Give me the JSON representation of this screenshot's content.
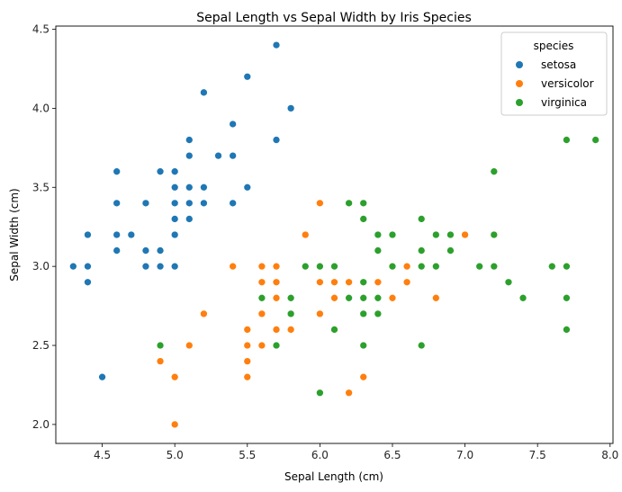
{
  "chart_data": {
    "type": "scatter",
    "title": "Sepal Length vs Sepal Width by Iris Species",
    "xlabel": "Sepal Length (cm)",
    "ylabel": "Sepal Width (cm)",
    "xlim": [
      4.18,
      8.02
    ],
    "ylim": [
      1.88,
      4.52
    ],
    "x_ticks": [
      "4.5",
      "5.0",
      "5.5",
      "6.0",
      "6.5",
      "7.0",
      "7.5",
      "8.0"
    ],
    "y_ticks": [
      "2.0",
      "2.5",
      "3.0",
      "3.5",
      "4.0",
      "4.5"
    ],
    "grid": false,
    "legend": {
      "title": "species",
      "placement": "top-right"
    },
    "series": [
      {
        "name": "setosa",
        "color": "#1f77b4",
        "points": [
          [
            5.1,
            3.5
          ],
          [
            4.9,
            3.0
          ],
          [
            4.7,
            3.2
          ],
          [
            4.6,
            3.1
          ],
          [
            5.0,
            3.6
          ],
          [
            5.4,
            3.9
          ],
          [
            4.6,
            3.4
          ],
          [
            5.0,
            3.4
          ],
          [
            4.4,
            2.9
          ],
          [
            4.9,
            3.1
          ],
          [
            5.4,
            3.7
          ],
          [
            4.8,
            3.4
          ],
          [
            4.8,
            3.0
          ],
          [
            4.3,
            3.0
          ],
          [
            5.8,
            4.0
          ],
          [
            5.7,
            4.4
          ],
          [
            5.4,
            3.9
          ],
          [
            5.1,
            3.5
          ],
          [
            5.7,
            3.8
          ],
          [
            5.1,
            3.8
          ],
          [
            5.4,
            3.4
          ],
          [
            5.1,
            3.7
          ],
          [
            4.6,
            3.6
          ],
          [
            5.1,
            3.3
          ],
          [
            4.8,
            3.4
          ],
          [
            5.0,
            3.0
          ],
          [
            5.0,
            3.4
          ],
          [
            5.2,
            3.5
          ],
          [
            5.2,
            3.4
          ],
          [
            4.7,
            3.2
          ],
          [
            4.8,
            3.1
          ],
          [
            5.4,
            3.4
          ],
          [
            5.2,
            4.1
          ],
          [
            5.5,
            4.2
          ],
          [
            4.9,
            3.1
          ],
          [
            5.0,
            3.2
          ],
          [
            5.5,
            3.5
          ],
          [
            4.9,
            3.6
          ],
          [
            4.4,
            3.0
          ],
          [
            5.1,
            3.4
          ],
          [
            5.0,
            3.5
          ],
          [
            4.5,
            2.3
          ],
          [
            4.4,
            3.2
          ],
          [
            5.0,
            3.5
          ],
          [
            5.1,
            3.8
          ],
          [
            4.8,
            3.0
          ],
          [
            5.1,
            3.8
          ],
          [
            4.6,
            3.2
          ],
          [
            5.3,
            3.7
          ],
          [
            5.0,
            3.3
          ]
        ]
      },
      {
        "name": "versicolor",
        "color": "#ff7f0e",
        "points": [
          [
            7.0,
            3.2
          ],
          [
            6.4,
            3.2
          ],
          [
            6.9,
            3.1
          ],
          [
            5.5,
            2.3
          ],
          [
            6.5,
            2.8
          ],
          [
            5.7,
            2.8
          ],
          [
            6.3,
            3.3
          ],
          [
            4.9,
            2.4
          ],
          [
            6.6,
            2.9
          ],
          [
            5.2,
            2.7
          ],
          [
            5.0,
            2.0
          ],
          [
            5.9,
            3.0
          ],
          [
            6.0,
            2.2
          ],
          [
            6.1,
            2.9
          ],
          [
            5.6,
            2.9
          ],
          [
            6.7,
            3.1
          ],
          [
            5.6,
            3.0
          ],
          [
            5.8,
            2.7
          ],
          [
            6.2,
            2.2
          ],
          [
            5.6,
            2.5
          ],
          [
            5.9,
            3.2
          ],
          [
            6.1,
            2.8
          ],
          [
            6.3,
            2.5
          ],
          [
            6.1,
            2.8
          ],
          [
            6.4,
            2.9
          ],
          [
            6.6,
            3.0
          ],
          [
            6.8,
            2.8
          ],
          [
            6.7,
            3.0
          ],
          [
            6.0,
            2.9
          ],
          [
            5.7,
            2.6
          ],
          [
            5.5,
            2.4
          ],
          [
            5.5,
            2.4
          ],
          [
            5.8,
            2.7
          ],
          [
            6.0,
            2.7
          ],
          [
            5.4,
            3.0
          ],
          [
            6.0,
            3.4
          ],
          [
            6.7,
            3.1
          ],
          [
            6.3,
            2.3
          ],
          [
            5.6,
            3.0
          ],
          [
            5.5,
            2.5
          ],
          [
            5.5,
            2.6
          ],
          [
            6.1,
            3.0
          ],
          [
            5.8,
            2.6
          ],
          [
            5.0,
            2.3
          ],
          [
            5.6,
            2.7
          ],
          [
            5.7,
            3.0
          ],
          [
            5.7,
            2.9
          ],
          [
            6.2,
            2.9
          ],
          [
            5.1,
            2.5
          ],
          [
            5.7,
            2.8
          ]
        ]
      },
      {
        "name": "virginica",
        "color": "#2ca02c",
        "points": [
          [
            6.3,
            3.3
          ],
          [
            5.8,
            2.7
          ],
          [
            7.1,
            3.0
          ],
          [
            6.3,
            2.9
          ],
          [
            6.5,
            3.0
          ],
          [
            7.6,
            3.0
          ],
          [
            4.9,
            2.5
          ],
          [
            7.3,
            2.9
          ],
          [
            6.7,
            2.5
          ],
          [
            7.2,
            3.6
          ],
          [
            6.5,
            3.2
          ],
          [
            6.4,
            2.7
          ],
          [
            6.8,
            3.0
          ],
          [
            5.7,
            2.5
          ],
          [
            5.8,
            2.8
          ],
          [
            6.4,
            3.2
          ],
          [
            6.5,
            3.0
          ],
          [
            7.7,
            3.8
          ],
          [
            7.7,
            2.6
          ],
          [
            6.0,
            2.2
          ],
          [
            6.9,
            3.2
          ],
          [
            5.6,
            2.8
          ],
          [
            7.7,
            2.8
          ],
          [
            6.3,
            2.7
          ],
          [
            6.7,
            3.3
          ],
          [
            7.2,
            3.2
          ],
          [
            6.2,
            2.8
          ],
          [
            6.1,
            3.0
          ],
          [
            6.4,
            2.8
          ],
          [
            7.2,
            3.0
          ],
          [
            7.4,
            2.8
          ],
          [
            7.9,
            3.8
          ],
          [
            6.4,
            2.8
          ],
          [
            6.3,
            2.8
          ],
          [
            6.1,
            2.6
          ],
          [
            7.7,
            3.0
          ],
          [
            6.3,
            3.4
          ],
          [
            6.4,
            3.1
          ],
          [
            6.0,
            3.0
          ],
          [
            6.9,
            3.1
          ],
          [
            6.7,
            3.1
          ],
          [
            6.9,
            3.1
          ],
          [
            5.8,
            2.7
          ],
          [
            6.8,
            3.2
          ],
          [
            6.7,
            3.3
          ],
          [
            6.7,
            3.0
          ],
          [
            6.3,
            2.5
          ],
          [
            6.5,
            3.0
          ],
          [
            6.2,
            3.4
          ],
          [
            5.9,
            3.0
          ]
        ]
      }
    ]
  }
}
